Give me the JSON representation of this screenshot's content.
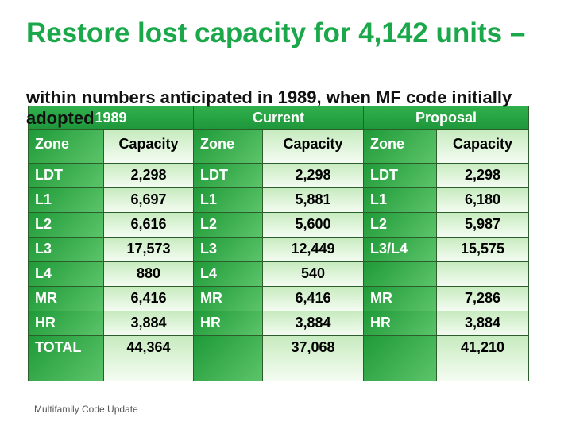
{
  "title": "Restore lost capacity for 4,142 units –",
  "subtitle": "within numbers anticipated in 1989, when MF code initially adopted",
  "table": {
    "groups": [
      "1989",
      "Current",
      "Proposal"
    ],
    "columns": [
      "Zone",
      "Capacity",
      "Zone",
      "Capacity",
      "Zone",
      "Capacity"
    ],
    "rows": [
      [
        "LDT",
        "2,298",
        "LDT",
        "2,298",
        "LDT",
        "2,298"
      ],
      [
        "L1",
        "6,697",
        "L1",
        "5,881",
        "L1",
        "6,180"
      ],
      [
        "L2",
        "6,616",
        "L2",
        "5,600",
        "L2",
        "5,987"
      ],
      [
        "L3",
        "17,573",
        "L3",
        "12,449",
        "L3/L4",
        "15,575"
      ],
      [
        "L4",
        "880",
        "L4",
        "540",
        null,
        null
      ],
      [
        "MR",
        "6,416",
        "MR",
        "6,416",
        "MR",
        "7,286"
      ],
      [
        "HR",
        "3,884",
        "HR",
        "3,884",
        "HR",
        "3,884"
      ],
      [
        "TOTAL",
        "44,364",
        null,
        "37,068",
        null,
        "41,210"
      ]
    ]
  },
  "footer": "Multifamily Code Update"
}
